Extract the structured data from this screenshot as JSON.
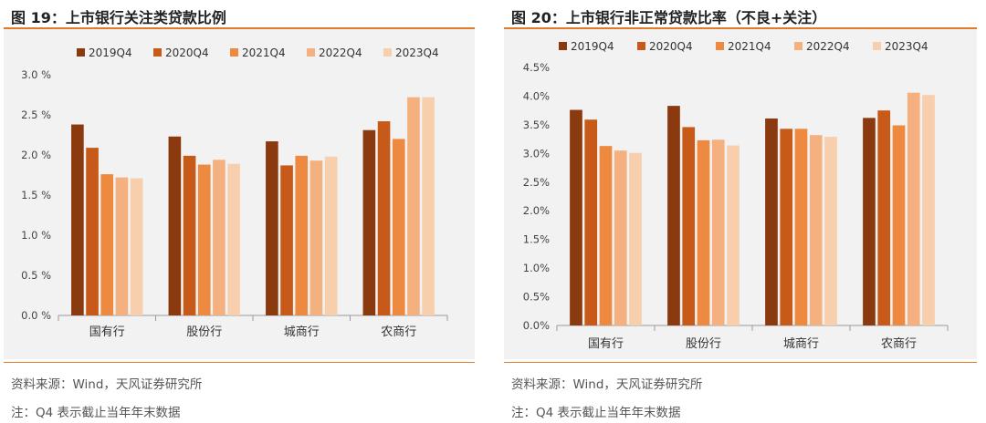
{
  "palette": [
    "#8b3a0f",
    "#c75a18",
    "#ee8a3f",
    "#f4b07f",
    "#f8cfad"
  ],
  "panels": [
    {
      "title": "图 19：上市银行关注类贷款比例",
      "source": "资料来源：Wind，天风证券研究所",
      "note": "注：Q4 表示截止当年年末数据"
    },
    {
      "title": "图 20：上市银行非正常贷款比率（不良+关注）",
      "source": "资料来源：Wind，天风证券研究所",
      "note": "注：Q4 表示截止当年年末数据"
    }
  ],
  "chart_data": [
    {
      "type": "bar",
      "title": "图 19：上市银行关注类贷款比例",
      "categories": [
        "国有行",
        "股份行",
        "城商行",
        "农商行"
      ],
      "series": [
        {
          "name": "2019Q4",
          "values": [
            2.38,
            2.23,
            2.17,
            2.31
          ]
        },
        {
          "name": "2020Q4",
          "values": [
            2.09,
            1.99,
            1.87,
            2.42
          ]
        },
        {
          "name": "2021Q4",
          "values": [
            1.76,
            1.88,
            1.99,
            2.2
          ]
        },
        {
          "name": "2022Q4",
          "values": [
            1.72,
            1.94,
            1.93,
            2.72
          ]
        },
        {
          "name": "2023Q4",
          "values": [
            1.71,
            1.89,
            1.98,
            2.72
          ]
        }
      ],
      "ylim": [
        0,
        3.0
      ],
      "yticks": [
        "0.0 %",
        "0.5 %",
        "1.0 %",
        "1.5 %",
        "2.0 %",
        "2.5 %",
        "3.0 %"
      ],
      "grid": false,
      "legend": "top"
    },
    {
      "type": "bar",
      "title": "图 20：上市银行非正常贷款比率（不良+关注）",
      "categories": [
        "国有行",
        "股份行",
        "城商行",
        "农商行"
      ],
      "series": [
        {
          "name": "2019Q4",
          "values": [
            3.76,
            3.83,
            3.61,
            3.62
          ]
        },
        {
          "name": "2020Q4",
          "values": [
            3.59,
            3.46,
            3.43,
            3.75
          ]
        },
        {
          "name": "2021Q4",
          "values": [
            3.13,
            3.23,
            3.43,
            3.49
          ]
        },
        {
          "name": "2022Q4",
          "values": [
            3.05,
            3.24,
            3.32,
            4.06
          ]
        },
        {
          "name": "2023Q4",
          "values": [
            3.01,
            3.14,
            3.29,
            4.02
          ]
        }
      ],
      "ylim": [
        0,
        4.5
      ],
      "yticks": [
        "0.0%",
        "0.5%",
        "1.0%",
        "1.5%",
        "2.0%",
        "2.5%",
        "3.0%",
        "3.5%",
        "4.0%",
        "4.5%"
      ],
      "grid": false,
      "legend": "top"
    }
  ]
}
